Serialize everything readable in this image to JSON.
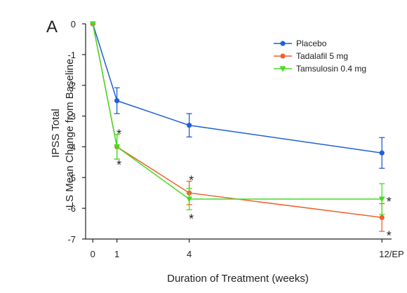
{
  "chart_data": {
    "type": "line",
    "panel_label": "A",
    "xlabel": "Duration of Treatment (weeks)",
    "ylabel_line1": "IPSS Total",
    "ylabel_line2": "LS Mean Change from Baseline",
    "x_ticks": [
      {
        "value": 0,
        "label": "0"
      },
      {
        "value": 1,
        "label": "1"
      },
      {
        "value": 4,
        "label": "4"
      },
      {
        "value": 12,
        "label": "12/EP"
      }
    ],
    "y_ticks": [
      0,
      -1,
      -2,
      -3,
      -4,
      -5,
      -6,
      -7
    ],
    "xlim": [
      -0.3,
      12.4
    ],
    "ylim": [
      -7,
      0
    ],
    "legend_position": "top-right",
    "series": [
      {
        "name": "Placebo",
        "color": "#1f5fd6",
        "marker": "circle",
        "x": [
          0,
          1,
          4,
          12
        ],
        "y": [
          0,
          -2.5,
          -3.3,
          -4.2
        ],
        "err": [
          0,
          0.42,
          0.38,
          0.5
        ]
      },
      {
        "name": "Tadalafil  5 mg",
        "color": "#f0602a",
        "marker": "circle",
        "x": [
          0,
          1,
          4,
          12
        ],
        "y": [
          0,
          -4.0,
          -5.5,
          -6.3
        ],
        "err": [
          0,
          0.4,
          0.38,
          0.45
        ]
      },
      {
        "name": "Tamsulosin 0.4 mg",
        "color": "#44dd22",
        "marker": "triangle-down",
        "x": [
          0,
          1,
          4,
          12
        ],
        "y": [
          0,
          -4.0,
          -5.7,
          -5.7
        ],
        "err": [
          0,
          0.4,
          0.35,
          0.5
        ]
      }
    ],
    "annotations": [
      {
        "text": "*",
        "x": 1,
        "y": -3.55,
        "note": "tadalafil"
      },
      {
        "text": "*",
        "x": 1,
        "y": -4.55,
        "note": "tamsulosin"
      },
      {
        "text": "*",
        "x": 4,
        "y": -5.05,
        "note": "tadalafil"
      },
      {
        "text": "*",
        "x": 4,
        "y": -6.3,
        "note": "tamsulosin"
      },
      {
        "text": "*",
        "x": 12,
        "y": -5.75,
        "note": "tamsulosin"
      },
      {
        "text": "*",
        "x": 12,
        "y": -6.85,
        "note": "tadalafil"
      }
    ]
  }
}
